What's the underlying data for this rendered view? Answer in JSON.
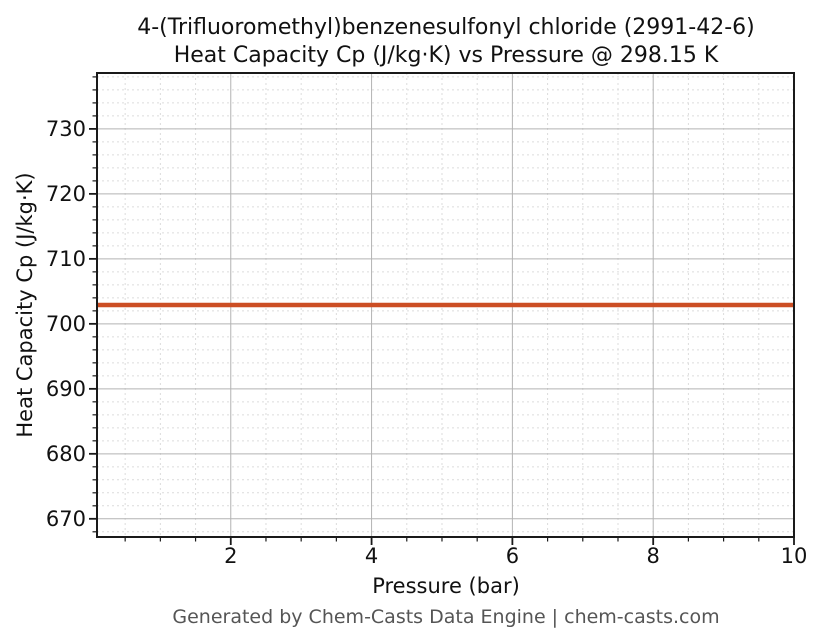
{
  "chart_data": {
    "type": "line",
    "title_lines": [
      "4-(Trifluoromethyl)benzenesulfonyl chloride (2991-42-6)",
      "Heat Capacity Cp (J/kg·K) vs Pressure @ 298.15 K"
    ],
    "xlabel": "Pressure (bar)",
    "ylabel": "Heat Capacity Cp (J/kg·K)",
    "footer": "Generated by Chem-Casts Data Engine | chem-casts.com",
    "compound": "4-(Trifluoromethyl)benzenesulfonyl chloride",
    "cas_number": "2991-42-6",
    "temperature": "298.15 K",
    "x_range": [
      0.1,
      10
    ],
    "y_range": [
      667.2,
      738.6
    ],
    "x_major_ticks": [
      2,
      4,
      6,
      8,
      10
    ],
    "x_minor_step": 0.5,
    "y_major_ticks": [
      670,
      680,
      690,
      700,
      710,
      720,
      730
    ],
    "y_minor_step": 2,
    "grid": true,
    "legend": false,
    "series": [
      {
        "name": "Heat Capacity Cp",
        "color": "#cc4e24",
        "line_width": 4.5,
        "x": [
          0.1,
          10
        ],
        "y": [
          702.9,
          702.9
        ]
      }
    ],
    "colors": {
      "background": "#ffffff",
      "axes_spine": "#1a1a1a",
      "grid_major": "#b3b3b3",
      "grid_minor": "#dcdcdc",
      "text": "#111111",
      "footer_text": "#555555",
      "line": "#cc4e24"
    }
  }
}
